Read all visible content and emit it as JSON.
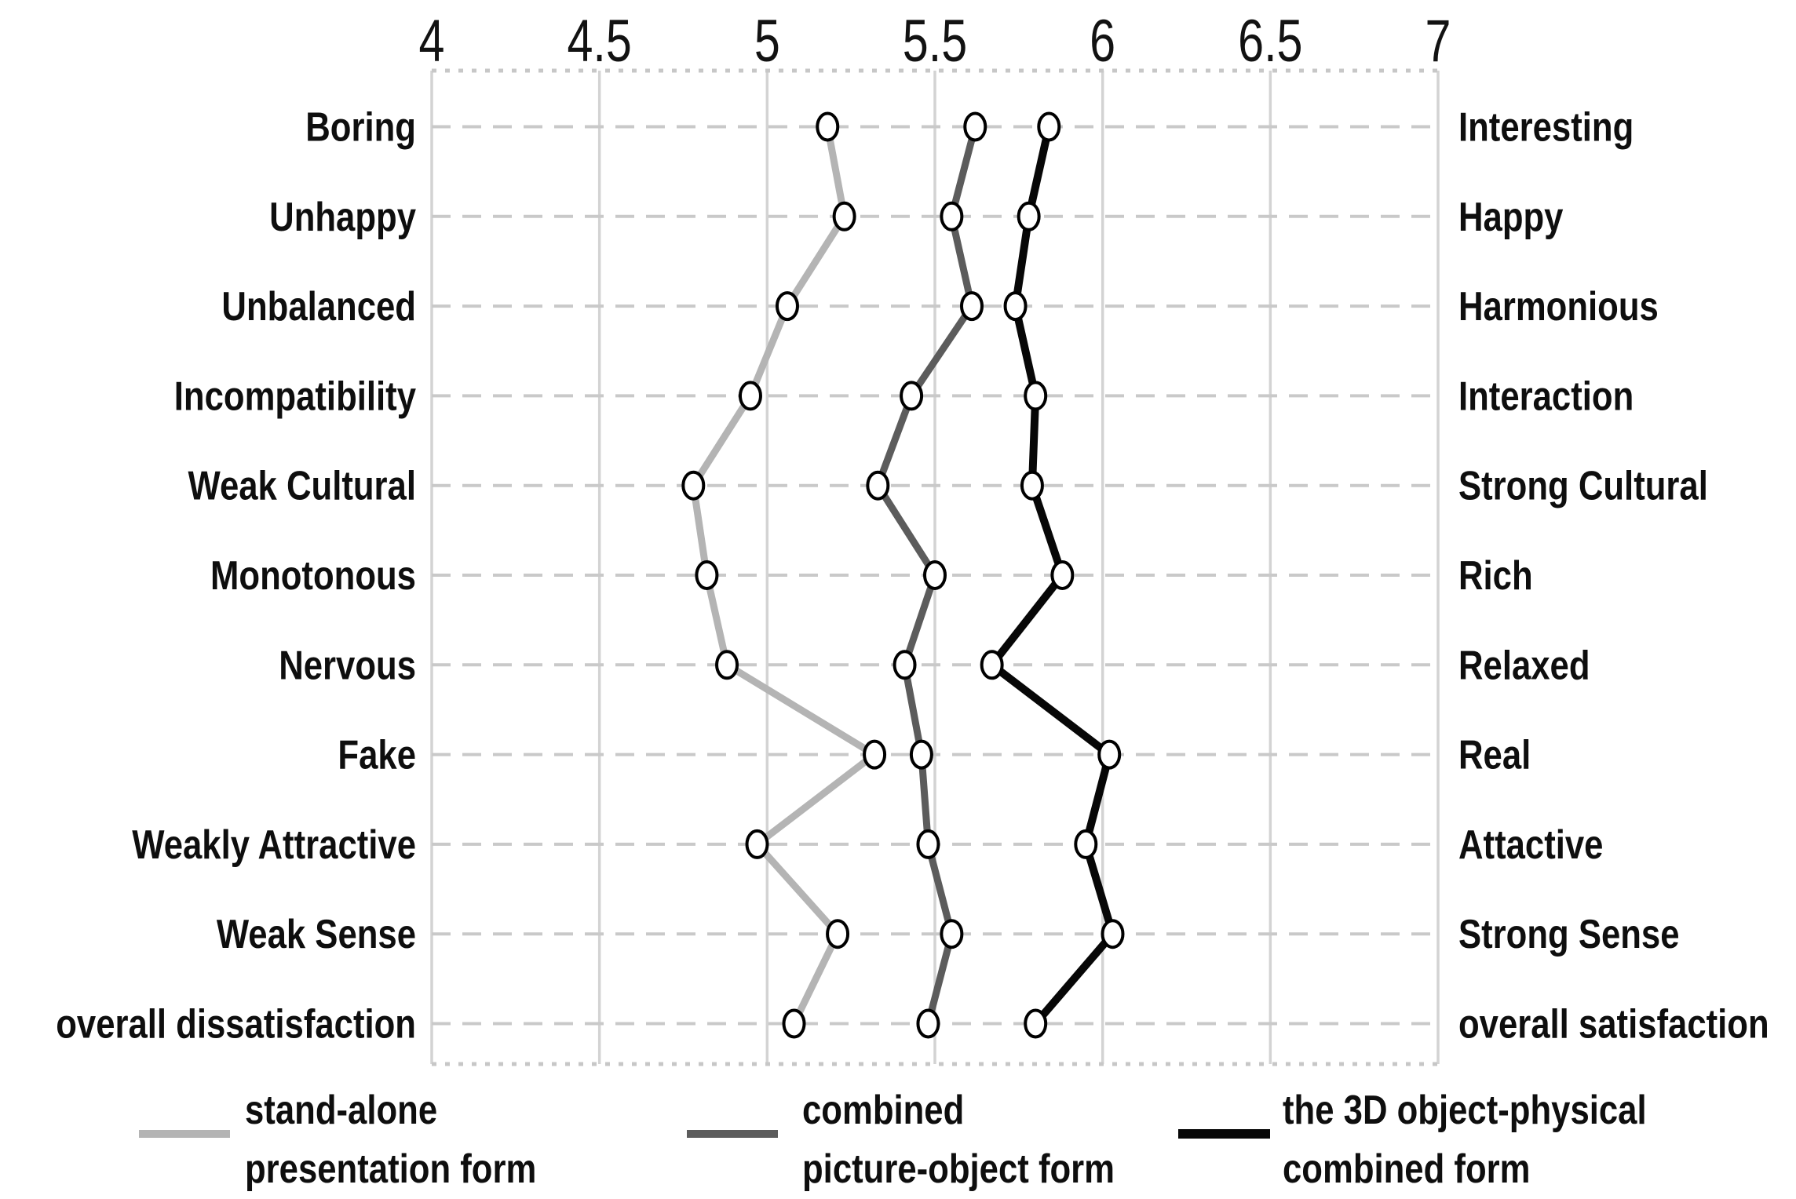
{
  "chart_data": {
    "type": "line",
    "description": "Semantic differential profile chart comparing three presentation forms across eleven bipolar adjective pairs",
    "x_axis": {
      "position": "top",
      "min": 4,
      "max": 7,
      "tick_values": [
        4,
        4.5,
        5,
        5.5,
        6,
        6.5,
        7
      ],
      "tick_labels": [
        "4",
        "4.5",
        "5",
        "5.5",
        "6",
        "6.5",
        "7"
      ]
    },
    "grid": {
      "vertical_gridlines": "solid",
      "horizontal_rowlines": "dashed",
      "top_bottom_border": "dotted"
    },
    "rows": [
      {
        "left": "Boring",
        "right": "Interesting"
      },
      {
        "left": "Unhappy",
        "right": "Happy"
      },
      {
        "left": "Unbalanced",
        "right": "Harmonious"
      },
      {
        "left": "Incompatibility",
        "right": "Interaction"
      },
      {
        "left": "Weak Cultural",
        "right": "Strong Cultural"
      },
      {
        "left": "Monotonous",
        "right": "Rich"
      },
      {
        "left": "Nervous",
        "right": "Relaxed"
      },
      {
        "left": "Fake",
        "right": "Real"
      },
      {
        "left": "Weakly Attractive",
        "right": "Attactive"
      },
      {
        "left": "Weak Sense",
        "right": "Strong Sense"
      },
      {
        "left": "overall dissatisfaction",
        "right": "overall satisfaction"
      }
    ],
    "series": [
      {
        "name": "stand-alone presentation form",
        "legend_lines": [
          "stand-alone",
          "presentation form"
        ],
        "color": "#b4b4b4",
        "line_width": 9,
        "values": [
          5.18,
          5.23,
          5.06,
          4.95,
          4.78,
          4.82,
          4.88,
          5.32,
          4.97,
          5.21,
          5.08
        ]
      },
      {
        "name": "combined picture-object form",
        "legend_lines": [
          "combined",
          "picture-object form"
        ],
        "color": "#5c5c5c",
        "line_width": 9,
        "values": [
          5.62,
          5.55,
          5.61,
          5.43,
          5.33,
          5.5,
          5.41,
          5.46,
          5.48,
          5.55,
          5.48
        ]
      },
      {
        "name": "the 3D object-physical combined form",
        "legend_lines": [
          "the 3D object-physical",
          "combined form"
        ],
        "color": "#070707",
        "line_width": 10,
        "values": [
          5.84,
          5.78,
          5.74,
          5.8,
          5.79,
          5.88,
          5.67,
          6.02,
          5.95,
          6.03,
          5.8
        ]
      }
    ],
    "marker": {
      "shape": "ellipse",
      "fill": "#ffffff",
      "stroke": "#000000"
    },
    "legend_position": "bottom"
  }
}
